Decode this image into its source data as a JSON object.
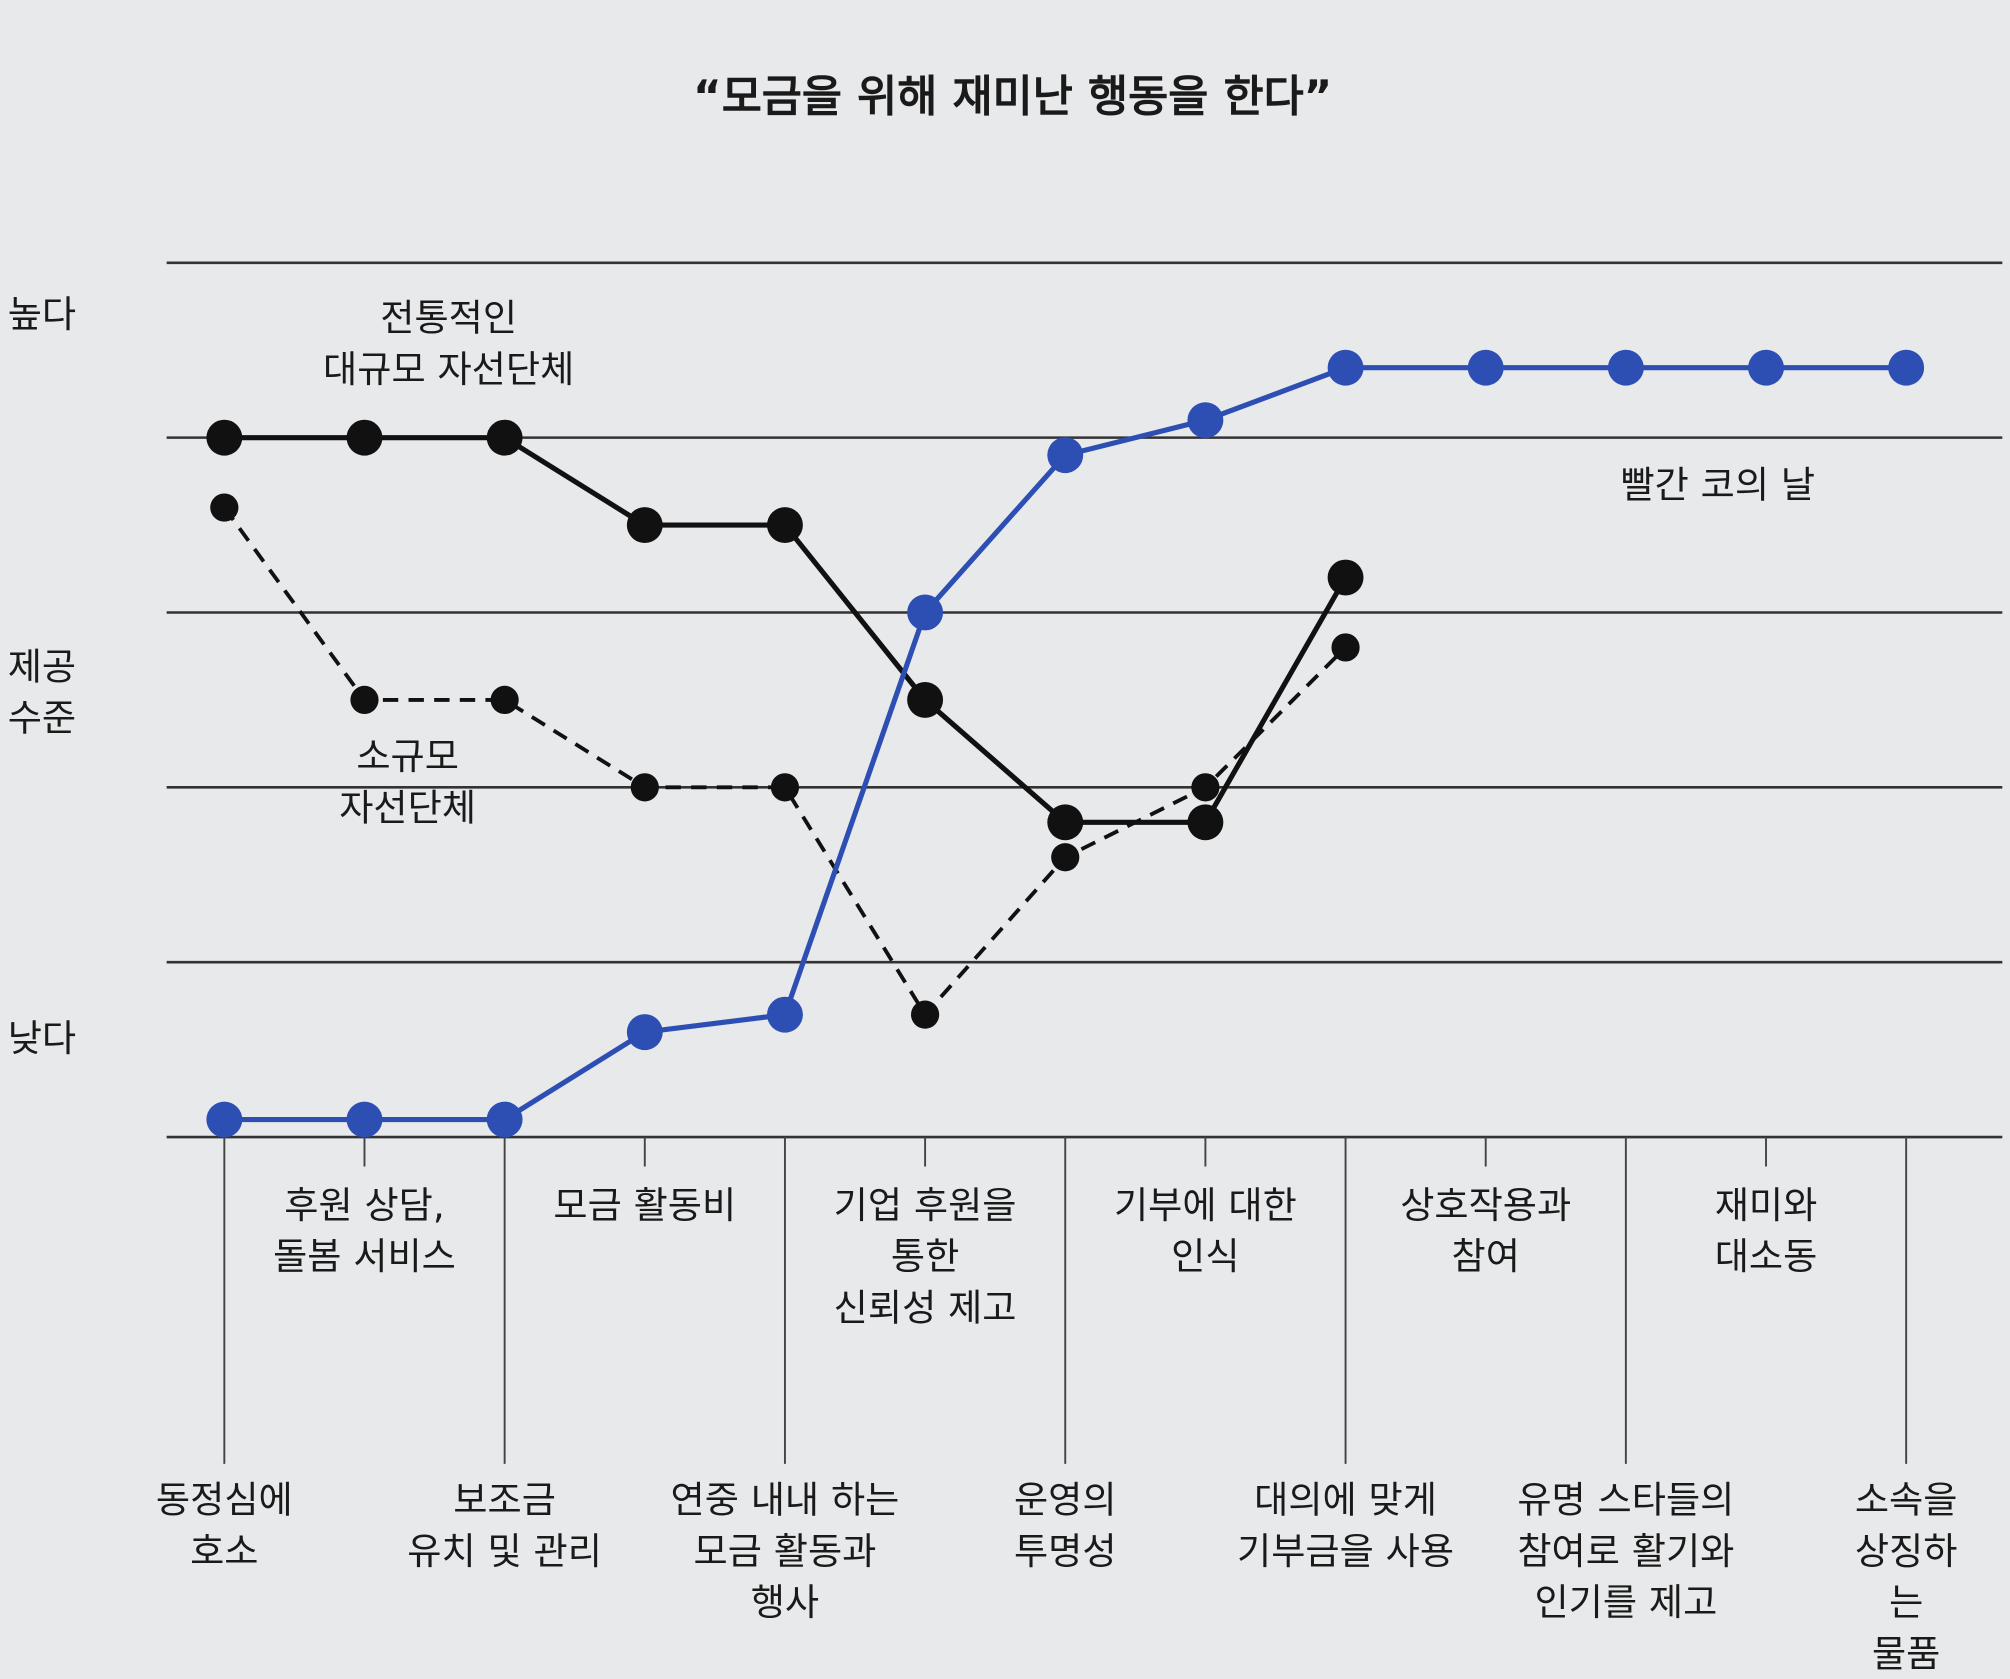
{
  "chart_data": {
    "type": "line",
    "title": "“모금을 위해 재미난 행동을 한다”",
    "y_labels": [
      "높다",
      "제공\n수준",
      "낮다"
    ],
    "categories": [
      "동정심에\n호소",
      "후원 상담,\n돌봄 서비스",
      "보조금\n유치 및 관리",
      "모금 활동비",
      "연중 내내 하는\n모금 활동과\n행사",
      "기업 후원을\n통한\n신뢰성 제고",
      "운영의\n투명성",
      "기부에 대한\n인식",
      "대의에 맞게\n기부금을 사용",
      "상호작용과\n참여",
      "유명 스타들의\n참여로 활기와\n인기를 제고",
      "재미와\n대소동",
      "소속을\n상징하는\n물품"
    ],
    "ylim": [
      0,
      5
    ],
    "grid_lines": [
      0,
      1,
      2,
      3,
      4,
      5
    ],
    "series": [
      {
        "name": "전통적인\n대규모 자선단체",
        "color": "#111111",
        "dashed": false,
        "values": [
          4.0,
          4.0,
          4.0,
          3.5,
          3.5,
          2.5,
          1.8,
          1.8,
          3.2,
          null,
          null,
          null,
          null
        ]
      },
      {
        "name": "소규모\n자선단체",
        "color": "#111111",
        "dashed": true,
        "values": [
          3.6,
          2.5,
          2.5,
          2.0,
          2.0,
          0.7,
          1.6,
          2.0,
          2.8,
          null,
          null,
          null,
          null
        ]
      },
      {
        "name": "빨간 코의 날",
        "color": "#2d4fb3",
        "dashed": false,
        "values": [
          0.1,
          0.1,
          0.1,
          0.6,
          0.7,
          3.0,
          3.9,
          4.1,
          4.4,
          4.4,
          4.4,
          4.4,
          4.4
        ]
      }
    ]
  }
}
